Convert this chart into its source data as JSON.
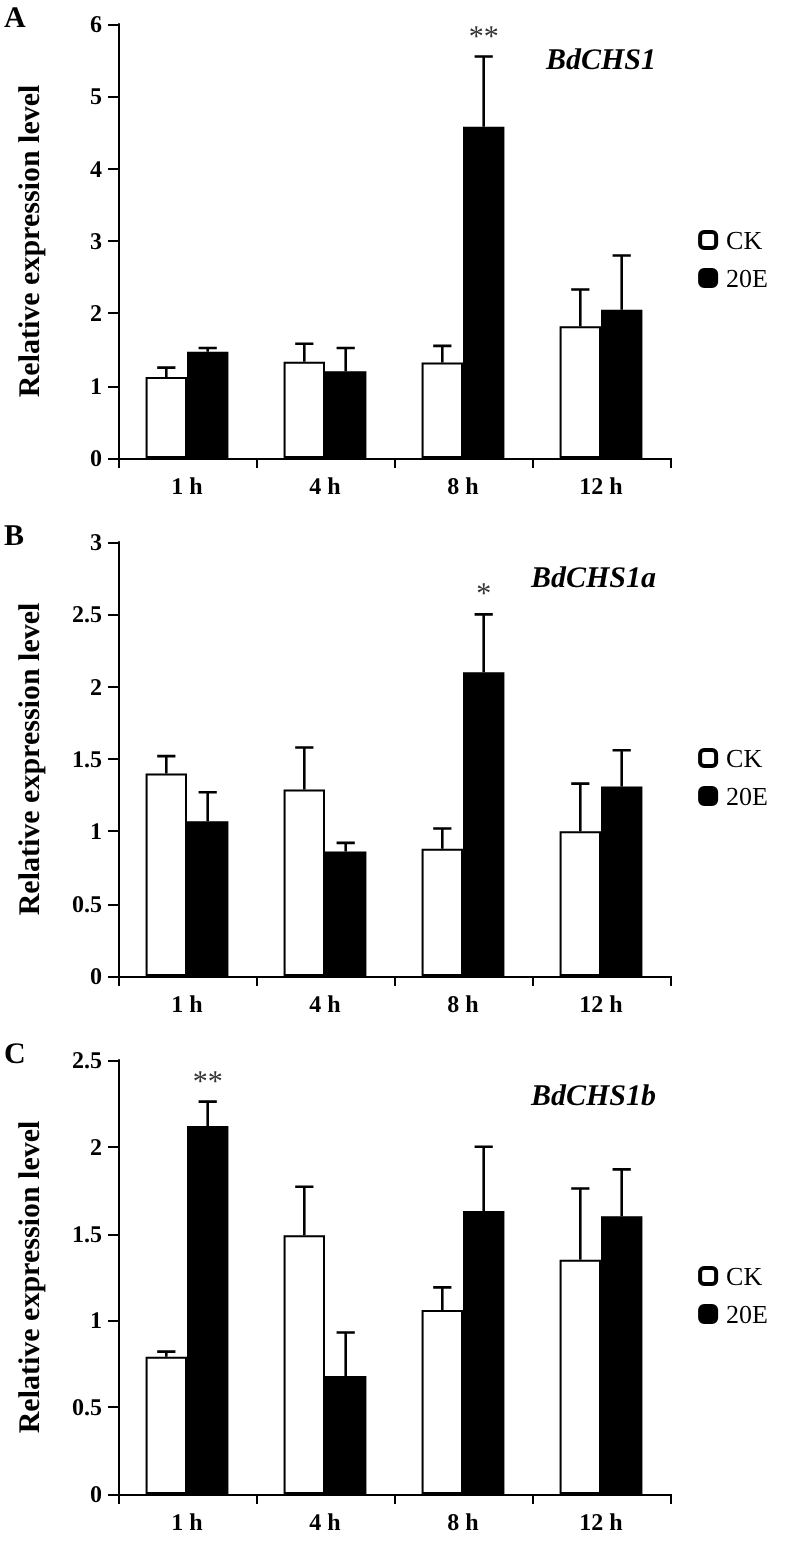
{
  "chart_data": [
    {
      "type": "bar",
      "title": "BdCHS1",
      "ylabel": "Relative expression level",
      "categories": [
        "1 h",
        "4 h",
        "8 h",
        "12 h"
      ],
      "series": [
        {
          "name": "CK",
          "color": "#ffffff",
          "values": [
            1.12,
            1.33,
            1.32,
            1.82
          ],
          "errors": [
            [
              1.12,
              1.25
            ],
            [
              1.33,
              1.58
            ],
            [
              1.32,
              1.55
            ],
            [
              1.82,
              2.33
            ]
          ]
        },
        {
          "name": "20E",
          "color": "#000000",
          "values": [
            1.47,
            1.2,
            4.58,
            2.05
          ],
          "errors": [
            [
              1.47,
              1.52
            ],
            [
              1.2,
              1.52
            ],
            [
              4.58,
              5.55
            ],
            [
              2.05,
              2.8
            ]
          ]
        }
      ],
      "ylim": [
        0,
        6
      ],
      "yticks": [
        0,
        1,
        2,
        3,
        4,
        5,
        6
      ],
      "grid": false,
      "legend": "right",
      "annotations": [
        "A",
        {
          "text": "**",
          "x": "8 h",
          "y": 4.58
        }
      ]
    },
    {
      "type": "bar",
      "title": "BdCHS1a",
      "ylabel": "Relative expression level",
      "categories": [
        "1 h",
        "4 h",
        "8 h",
        "12 h"
      ],
      "series": [
        {
          "name": "CK",
          "color": "#ffffff",
          "values": [
            1.4,
            1.29,
            0.88,
            1.0
          ],
          "errors": [
            [
              1.4,
              1.52
            ],
            [
              1.29,
              1.58
            ],
            [
              0.88,
              1.02
            ],
            [
              1.0,
              1.33
            ]
          ]
        },
        {
          "name": "20E",
          "color": "#000000",
          "values": [
            1.07,
            0.86,
            2.1,
            1.31
          ],
          "errors": [
            [
              1.07,
              1.27
            ],
            [
              0.86,
              0.92
            ],
            [
              2.1,
              2.5
            ],
            [
              1.31,
              1.56
            ]
          ]
        }
      ],
      "ylim": [
        0,
        3
      ],
      "yticks": [
        0,
        0.5,
        1,
        1.5,
        2,
        2.5,
        3
      ],
      "grid": false,
      "legend": "right",
      "annotations": [
        "B",
        {
          "text": "*",
          "x": "8 h",
          "y": 2.1
        }
      ]
    },
    {
      "type": "bar",
      "title": "BdCHS1b",
      "ylabel": "Relative expression level",
      "categories": [
        "1 h",
        "4 h",
        "8 h",
        "12 h"
      ],
      "series": [
        {
          "name": "CK",
          "color": "#ffffff",
          "values": [
            0.79,
            1.49,
            1.06,
            1.35
          ],
          "errors": [
            [
              0.79,
              0.82
            ],
            [
              1.49,
              1.77
            ],
            [
              1.06,
              1.19
            ],
            [
              1.35,
              1.76
            ]
          ]
        },
        {
          "name": "20E",
          "color": "#000000",
          "values": [
            2.12,
            0.68,
            1.63,
            1.6
          ],
          "errors": [
            [
              2.12,
              2.26
            ],
            [
              0.68,
              0.93
            ],
            [
              1.63,
              2.0
            ],
            [
              1.6,
              1.87
            ]
          ]
        }
      ],
      "ylim": [
        0,
        2.5
      ],
      "yticks": [
        0,
        0.5,
        1,
        1.5,
        2,
        2.5
      ],
      "grid": false,
      "legend": "right",
      "annotations": [
        "C",
        {
          "text": "**",
          "x": "1 h",
          "y": 2.12
        }
      ]
    }
  ]
}
